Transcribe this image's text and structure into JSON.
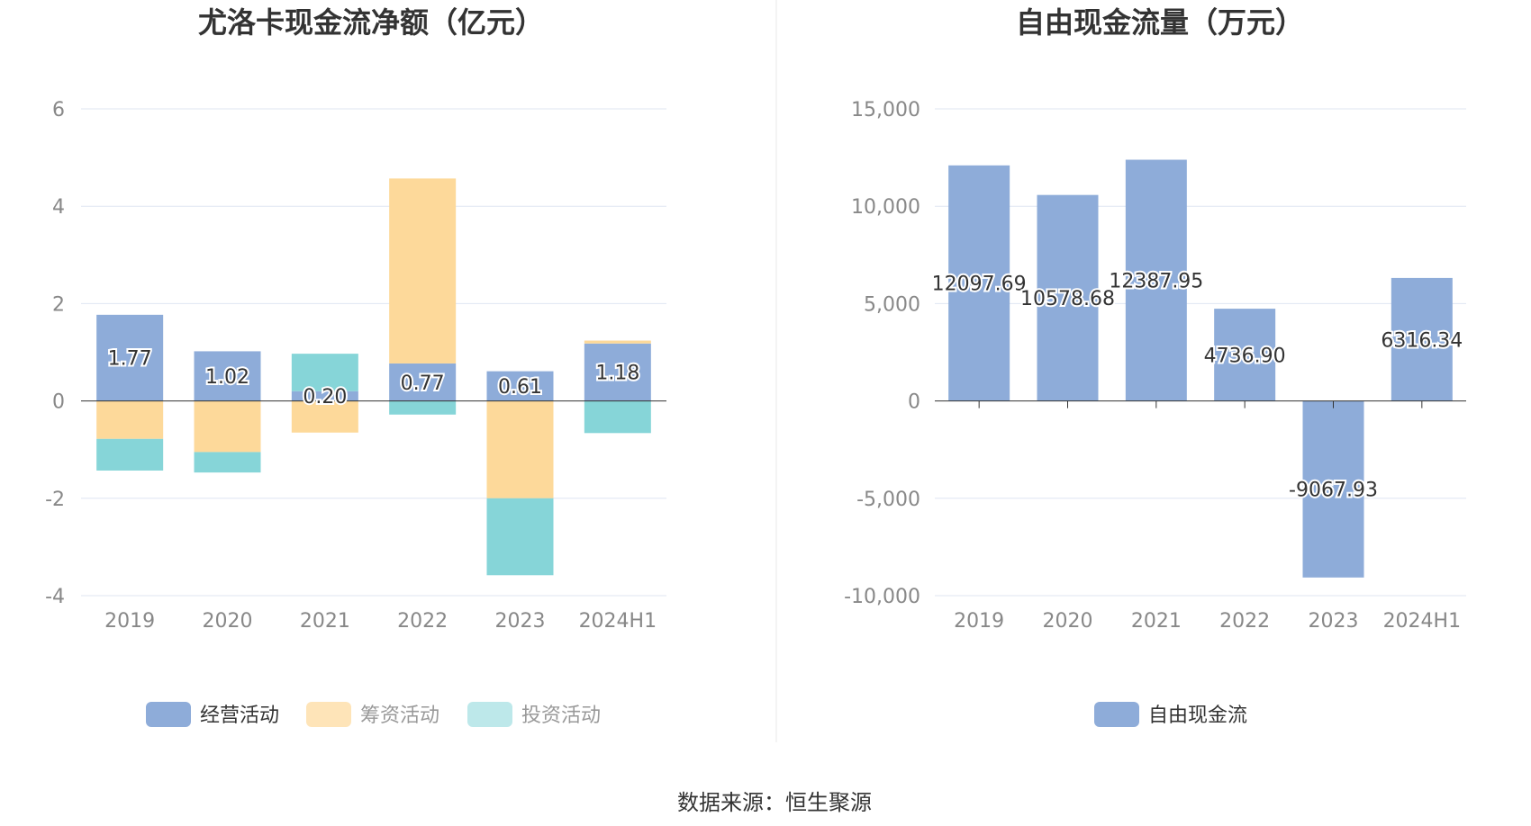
{
  "colors": {
    "operating": "#8eacd9",
    "financing": "#fdd99a",
    "investing": "#86d5d8",
    "fcf": "#8eacd9",
    "axis": "#333333",
    "grid": "#dfe6f2"
  },
  "source_text": "数据来源：恒生聚源",
  "chart_data": [
    {
      "type": "bar",
      "stacked": true,
      "title": "尤洛卡现金流净额（亿元）",
      "categories": [
        "2019",
        "2020",
        "2021",
        "2022",
        "2023",
        "2024H1"
      ],
      "ylim": [
        -4,
        6
      ],
      "yticks": [
        6,
        4,
        2,
        0,
        -2,
        -4
      ],
      "grid": true,
      "legend_position": "bottom",
      "series": [
        {
          "name": "经营活动",
          "values": [
            1.77,
            1.02,
            0.2,
            0.77,
            0.61,
            1.18
          ],
          "labels": [
            "1.77",
            "1.02",
            "0.20",
            "0.77",
            "0.61",
            "1.18"
          ]
        },
        {
          "name": "筹资活动",
          "values": [
            -0.78,
            -1.05,
            -0.65,
            3.8,
            -2.0,
            0.06
          ]
        },
        {
          "name": "投资活动",
          "values": [
            -0.65,
            -0.42,
            0.77,
            -0.28,
            -1.58,
            -0.66
          ]
        }
      ]
    },
    {
      "type": "bar",
      "title": "自由现金流量（万元）",
      "categories": [
        "2019",
        "2020",
        "2021",
        "2022",
        "2023",
        "2024H1"
      ],
      "ylim": [
        -10000,
        15000
      ],
      "yticks": [
        "15,000",
        "10,000",
        "5,000",
        "0",
        "-5,000",
        "-10,000"
      ],
      "grid": true,
      "legend_position": "bottom",
      "series": [
        {
          "name": "自由现金流",
          "values": [
            12097.69,
            10578.68,
            12387.95,
            4736.9,
            -9067.93,
            6316.34
          ],
          "labels": [
            "12097.69",
            "10578.68",
            "12387.95",
            "4736.90",
            "-9067.93",
            "6316.34"
          ]
        }
      ]
    }
  ]
}
